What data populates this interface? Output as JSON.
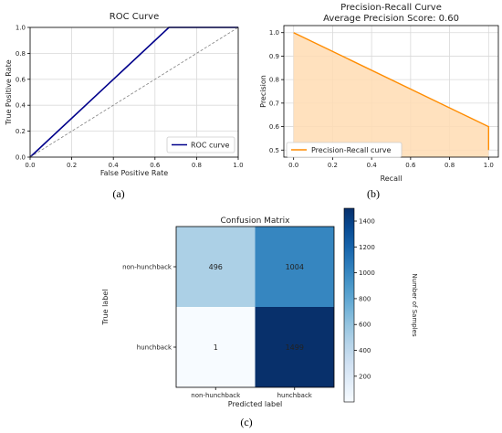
{
  "captions": [
    "(a)",
    "(b)",
    "(c)"
  ],
  "chart_data": [
    {
      "type": "line",
      "title": "ROC Curve",
      "xlabel": "False Positive Rate",
      "ylabel": "True Positive Rate",
      "xlim": [
        0,
        1
      ],
      "ylim": [
        0,
        1
      ],
      "xticks": [
        "0.0",
        "0.2",
        "0.4",
        "0.6",
        "0.8",
        "1.0"
      ],
      "yticks": [
        "0.0",
        "0.2",
        "0.4",
        "0.6",
        "0.8",
        "1.0"
      ],
      "grid": true,
      "legend_position": "lower-right",
      "series": [
        {
          "name": "ROC curve",
          "color": "#00008b",
          "x": [
            0.0,
            0.667,
            1.0
          ],
          "y": [
            0.0,
            1.0,
            1.0
          ]
        },
        {
          "color": "#808080",
          "style": "dashed",
          "x": [
            0.0,
            1.0
          ],
          "y": [
            0.0,
            1.0
          ]
        }
      ]
    },
    {
      "type": "area",
      "title": "Precision-Recall Curve",
      "subtitle": "Average Precision Score: 0.60",
      "xlabel": "Recall",
      "ylabel": "Precision",
      "xlim": [
        -0.05,
        1.05
      ],
      "ylim": [
        0.47,
        1.03
      ],
      "xticks": [
        "0.0",
        "0.2",
        "0.4",
        "0.6",
        "0.8",
        "1.0"
      ],
      "yticks": [
        "0.5",
        "0.6",
        "0.7",
        "0.8",
        "0.9",
        "1.0"
      ],
      "grid": true,
      "legend_position": "lower-left",
      "series": [
        {
          "name": "Precision-Recall curve",
          "color": "#ff8c00",
          "fill": "#ffdcb3",
          "x": [
            0.0,
            1.0,
            1.0,
            1.0
          ],
          "y": [
            1.0,
            0.5997,
            0.5,
            0.5
          ]
        }
      ]
    },
    {
      "type": "heatmap",
      "title": "Confusion Matrix",
      "xlabel": "Predicted label",
      "ylabel": "True label",
      "x_categories": [
        "non-hunchback",
        "hunchback"
      ],
      "y_categories": [
        "non-hunchback",
        "hunchback"
      ],
      "values": [
        [
          496,
          1004
        ],
        [
          1,
          1499
        ]
      ],
      "colorbar": {
        "label": "Number of Samples",
        "min": 1,
        "max": 1499,
        "ticks": [
          "200",
          "400",
          "600",
          "800",
          "1000",
          "1200",
          "1400"
        ]
      },
      "colormap": "Blues"
    }
  ]
}
